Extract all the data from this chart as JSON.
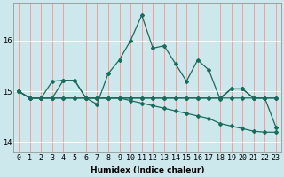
{
  "xlabel": "Humidex (Indice chaleur)",
  "bg_color": "#cce8ec",
  "vgrid_color": "#ff9999",
  "hgrid_color": "#ffffff",
  "line_color": "#1a6b5a",
  "xlim": [
    -0.5,
    23.5
  ],
  "ylim": [
    13.8,
    16.75
  ],
  "yticks": [
    14,
    15,
    16
  ],
  "xticks": [
    0,
    1,
    2,
    3,
    4,
    5,
    6,
    7,
    8,
    9,
    10,
    11,
    12,
    13,
    14,
    15,
    16,
    17,
    18,
    19,
    20,
    21,
    22,
    23
  ],
  "lines": [
    [
      15.0,
      14.87,
      14.87,
      15.2,
      15.22,
      15.22,
      14.87,
      14.75,
      15.35,
      15.62,
      16.0,
      16.5,
      15.85,
      15.9,
      15.55,
      15.2,
      15.62,
      15.42,
      14.85,
      15.05,
      15.05,
      14.87,
      14.87,
      14.87
    ],
    [
      15.0,
      14.87,
      14.87,
      14.87,
      15.22,
      15.22,
      14.87,
      14.87,
      14.87,
      14.87,
      14.87,
      14.87,
      14.87,
      14.87,
      14.87,
      14.87,
      14.87,
      14.87,
      14.87,
      15.05,
      15.05,
      14.87,
      14.87,
      14.87
    ],
    [
      15.0,
      14.87,
      14.87,
      14.87,
      14.87,
      14.87,
      14.87,
      14.87,
      14.87,
      14.87,
      14.87,
      14.87,
      14.87,
      14.87,
      14.87,
      14.87,
      14.87,
      14.87,
      14.87,
      14.87,
      14.87,
      14.87,
      14.87,
      14.3
    ],
    [
      15.0,
      14.87,
      14.87,
      14.87,
      14.87,
      14.87,
      14.87,
      14.87,
      14.87,
      14.87,
      14.82,
      14.77,
      14.72,
      14.67,
      14.62,
      14.57,
      14.52,
      14.47,
      14.37,
      14.32,
      14.27,
      14.22,
      14.2,
      14.2
    ]
  ],
  "marker": "D",
  "markersize": 2.0,
  "linewidth": 0.9,
  "label_fontsize": 6.5,
  "tick_fontsize": 6.0
}
